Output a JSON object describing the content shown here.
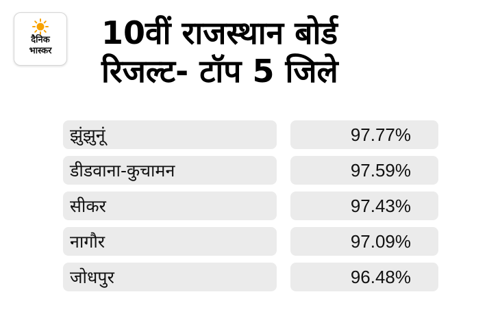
{
  "logo": {
    "line1": "दैनिक",
    "line2": "भास्कर",
    "sun_color": "#f7a200"
  },
  "title": {
    "line1": "10वीं राजस्थान बोर्ड",
    "line2": "रिजल्ट- टॉप 5 जिले"
  },
  "districts": [
    {
      "name": "झुंझुनूं",
      "percent": "97.77%"
    },
    {
      "name": "डीडवाना-कुचामन",
      "percent": "97.59%"
    },
    {
      "name": "सीकर",
      "percent": "97.43%"
    },
    {
      "name": "नागौर",
      "percent": "97.09%"
    },
    {
      "name": "जोधपुर",
      "percent": "96.48%"
    }
  ]
}
